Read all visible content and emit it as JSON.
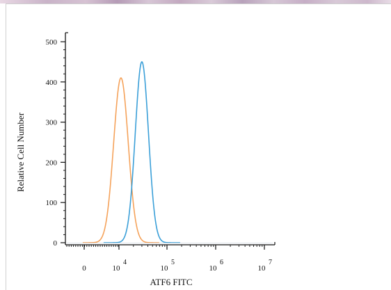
{
  "chart_data": {
    "type": "histogram",
    "xlabel": "ATF6 FITC",
    "ylabel": "Relative Cell Number",
    "x_scale": "biexponential",
    "ylim": [
      0,
      500
    ],
    "y_ticks": [
      0,
      100,
      200,
      300,
      400,
      500
    ],
    "x_ticks": [
      {
        "base": "0",
        "exp": ""
      },
      {
        "base": "10",
        "exp": "4"
      },
      {
        "base": "10",
        "exp": "5"
      },
      {
        "base": "10",
        "exp": "6"
      },
      {
        "base": "10",
        "exp": "7"
      }
    ],
    "grid": false,
    "series": [
      {
        "color": "#f5a25a",
        "peak_x": 11000,
        "peak_y": 410
      },
      {
        "color": "#3a9fd8",
        "peak_x": 30000,
        "peak_y": 450
      }
    ]
  }
}
